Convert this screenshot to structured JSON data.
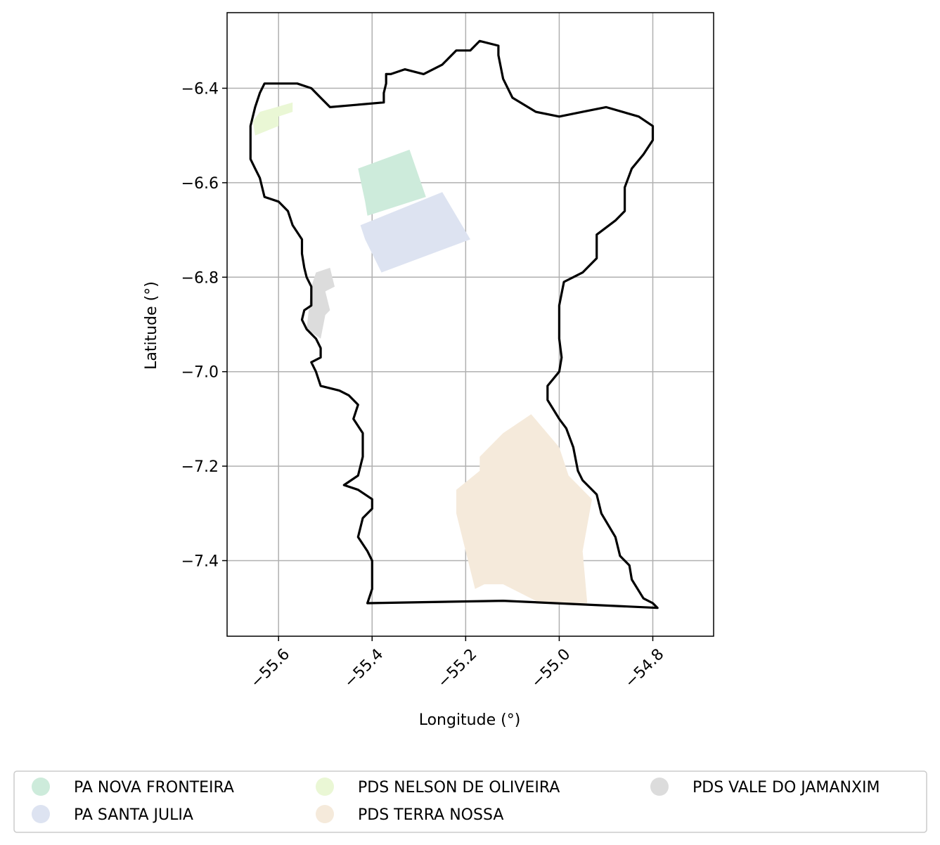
{
  "map": {
    "xlabel": "Longitude (°)",
    "ylabel": "Latitude (°)",
    "xlim": [
      -55.71,
      -54.67
    ],
    "ylim": [
      -7.56,
      -6.24
    ],
    "x_ticks": [
      -55.6,
      -55.4,
      -55.2,
      -55.0,
      -54.8
    ],
    "y_ticks": [
      -6.4,
      -6.6,
      -6.8,
      -7.0,
      -7.2,
      -7.4
    ],
    "x_tick_labels": [
      "−55.6",
      "−55.4",
      "−55.2",
      "−55.0",
      "−54.8"
    ],
    "y_tick_labels": [
      "−6.4",
      "−6.6",
      "−6.8",
      "−7.0",
      "−7.2",
      "−7.4"
    ],
    "grid": true,
    "boundary_color": "#000000",
    "boundary": [
      [
        -55.41,
        -7.49
      ],
      [
        -55.12,
        -7.485
      ],
      [
        -54.79,
        -7.5
      ],
      [
        -54.8,
        -7.49
      ],
      [
        -54.82,
        -7.48
      ],
      [
        -54.845,
        -7.44
      ],
      [
        -54.85,
        -7.41
      ],
      [
        -54.87,
        -7.39
      ],
      [
        -54.88,
        -7.35
      ],
      [
        -54.91,
        -7.3
      ],
      [
        -54.92,
        -7.26
      ],
      [
        -54.95,
        -7.23
      ],
      [
        -54.96,
        -7.21
      ],
      [
        -54.97,
        -7.16
      ],
      [
        -54.985,
        -7.12
      ],
      [
        -55.0,
        -7.1
      ],
      [
        -55.025,
        -7.06
      ],
      [
        -55.025,
        -7.03
      ],
      [
        -55.0,
        -7.0
      ],
      [
        -54.995,
        -6.97
      ],
      [
        -55.0,
        -6.93
      ],
      [
        -55.0,
        -6.86
      ],
      [
        -54.99,
        -6.81
      ],
      [
        -54.97,
        -6.8
      ],
      [
        -54.95,
        -6.79
      ],
      [
        -54.92,
        -6.76
      ],
      [
        -54.92,
        -6.71
      ],
      [
        -54.88,
        -6.68
      ],
      [
        -54.86,
        -6.66
      ],
      [
        -54.86,
        -6.61
      ],
      [
        -54.845,
        -6.57
      ],
      [
        -54.82,
        -6.54
      ],
      [
        -54.8,
        -6.51
      ],
      [
        -54.8,
        -6.48
      ],
      [
        -54.83,
        -6.46
      ],
      [
        -54.9,
        -6.44
      ],
      [
        -54.95,
        -6.45
      ],
      [
        -55.0,
        -6.46
      ],
      [
        -55.05,
        -6.45
      ],
      [
        -55.1,
        -6.42
      ],
      [
        -55.12,
        -6.38
      ],
      [
        -55.13,
        -6.33
      ],
      [
        -55.13,
        -6.31
      ],
      [
        -55.17,
        -6.3
      ],
      [
        -55.19,
        -6.32
      ],
      [
        -55.22,
        -6.32
      ],
      [
        -55.24,
        -6.34
      ],
      [
        -55.25,
        -6.35
      ],
      [
        -55.29,
        -6.37
      ],
      [
        -55.33,
        -6.36
      ],
      [
        -55.36,
        -6.37
      ],
      [
        -55.37,
        -6.37
      ],
      [
        -55.37,
        -6.39
      ],
      [
        -55.375,
        -6.41
      ],
      [
        -55.375,
        -6.43
      ],
      [
        -55.49,
        -6.44
      ],
      [
        -55.51,
        -6.42
      ],
      [
        -55.53,
        -6.4
      ],
      [
        -55.56,
        -6.39
      ],
      [
        -55.6,
        -6.39
      ],
      [
        -55.63,
        -6.39
      ],
      [
        -55.64,
        -6.41
      ],
      [
        -55.65,
        -6.44
      ],
      [
        -55.66,
        -6.48
      ],
      [
        -55.66,
        -6.53
      ],
      [
        -55.66,
        -6.55
      ],
      [
        -55.65,
        -6.57
      ],
      [
        -55.64,
        -6.59
      ],
      [
        -55.63,
        -6.63
      ],
      [
        -55.6,
        -6.64
      ],
      [
        -55.58,
        -6.66
      ],
      [
        -55.57,
        -6.69
      ],
      [
        -55.55,
        -6.72
      ],
      [
        -55.55,
        -6.75
      ],
      [
        -55.545,
        -6.78
      ],
      [
        -55.54,
        -6.8
      ],
      [
        -55.53,
        -6.82
      ],
      [
        -55.53,
        -6.86
      ],
      [
        -55.545,
        -6.87
      ],
      [
        -55.55,
        -6.89
      ],
      [
        -55.54,
        -6.91
      ],
      [
        -55.52,
        -6.93
      ],
      [
        -55.51,
        -6.95
      ],
      [
        -55.51,
        -6.97
      ],
      [
        -55.53,
        -6.98
      ],
      [
        -55.52,
        -7.0
      ],
      [
        -55.51,
        -7.03
      ],
      [
        -55.47,
        -7.04
      ],
      [
        -55.45,
        -7.05
      ],
      [
        -55.43,
        -7.07
      ],
      [
        -55.44,
        -7.1
      ],
      [
        -55.42,
        -7.13
      ],
      [
        -55.42,
        -7.18
      ],
      [
        -55.43,
        -7.22
      ],
      [
        -55.46,
        -7.24
      ],
      [
        -55.43,
        -7.25
      ],
      [
        -55.4,
        -7.27
      ],
      [
        -55.4,
        -7.29
      ],
      [
        -55.42,
        -7.31
      ],
      [
        -55.43,
        -7.35
      ],
      [
        -55.41,
        -7.38
      ],
      [
        -55.4,
        -7.4
      ],
      [
        -55.4,
        -7.44
      ],
      [
        -55.4,
        -7.46
      ],
      [
        -55.41,
        -7.49
      ]
    ],
    "settlements": [
      {
        "name": "PA NOVA FRONTEIRA",
        "color": "#cdebdb",
        "polygon": [
          [
            -55.43,
            -6.57
          ],
          [
            -55.32,
            -6.53
          ],
          [
            -55.285,
            -6.63
          ],
          [
            -55.41,
            -6.67
          ],
          [
            -55.415,
            -6.64
          ]
        ]
      },
      {
        "name": "PA SANTA JULIA",
        "color": "#dde3f1",
        "polygon": [
          [
            -55.425,
            -6.69
          ],
          [
            -55.25,
            -6.62
          ],
          [
            -55.19,
            -6.72
          ],
          [
            -55.38,
            -6.79
          ],
          [
            -55.415,
            -6.72
          ]
        ]
      },
      {
        "name": "PDS NELSON DE OLIVEIRA",
        "color": "#eaf7d5",
        "polygon": [
          [
            -55.655,
            -6.47
          ],
          [
            -55.64,
            -6.45
          ],
          [
            -55.57,
            -6.43
          ],
          [
            -55.57,
            -6.45
          ],
          [
            -55.6,
            -6.46
          ],
          [
            -55.6,
            -6.48
          ],
          [
            -55.65,
            -6.5
          ]
        ]
      },
      {
        "name": "PDS TERRA NOSSA",
        "color": "#f5eadb",
        "polygon": [
          [
            -55.22,
            -7.25
          ],
          [
            -55.17,
            -7.21
          ],
          [
            -55.17,
            -7.18
          ],
          [
            -55.12,
            -7.13
          ],
          [
            -55.06,
            -7.09
          ],
          [
            -55.0,
            -7.16
          ],
          [
            -54.98,
            -7.22
          ],
          [
            -54.93,
            -7.27
          ],
          [
            -54.95,
            -7.38
          ],
          [
            -54.94,
            -7.49
          ],
          [
            -55.04,
            -7.49
          ],
          [
            -55.12,
            -7.45
          ],
          [
            -55.16,
            -7.45
          ],
          [
            -55.18,
            -7.46
          ],
          [
            -55.22,
            -7.3
          ]
        ]
      },
      {
        "name": "PDS VALE DO JAMANXIM",
        "color": "#dcdcdc",
        "polygon": [
          [
            -55.52,
            -6.79
          ],
          [
            -55.49,
            -6.78
          ],
          [
            -55.48,
            -6.82
          ],
          [
            -55.5,
            -6.83
          ],
          [
            -55.49,
            -6.87
          ],
          [
            -55.5,
            -6.88
          ],
          [
            -55.51,
            -6.93
          ],
          [
            -55.54,
            -6.91
          ],
          [
            -55.53,
            -6.82
          ]
        ]
      }
    ]
  },
  "legend": {
    "items": [
      {
        "label": "PA NOVA FRONTEIRA",
        "color": "#cdebdb"
      },
      {
        "label": "PA SANTA JULIA",
        "color": "#dde3f1"
      },
      {
        "label": "PDS NELSON DE OLIVEIRA",
        "color": "#eaf7d5"
      },
      {
        "label": "PDS TERRA NOSSA",
        "color": "#f5eadb"
      },
      {
        "label": "PDS VALE DO JAMANXIM",
        "color": "#dcdcdc"
      }
    ]
  }
}
